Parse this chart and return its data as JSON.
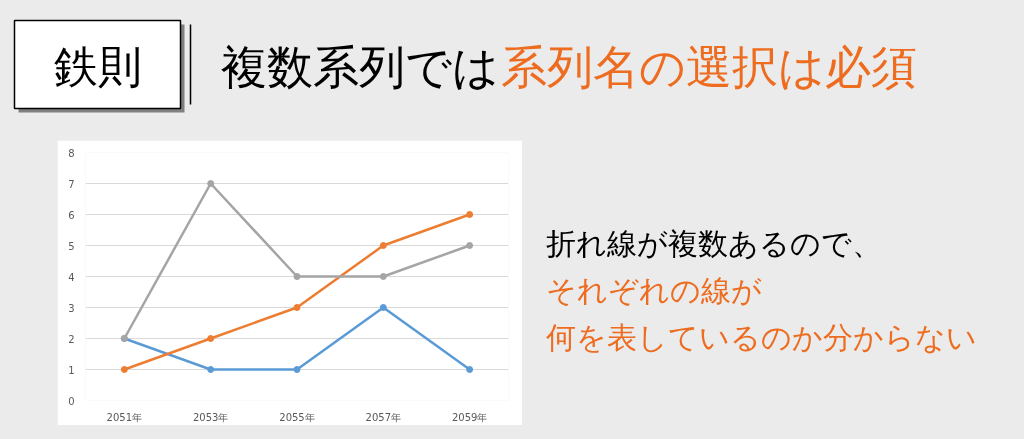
{
  "chart_data": {
    "type": "line",
    "categories": [
      "2051年",
      "2053年",
      "2055年",
      "2057年",
      "2059年"
    ],
    "series": [
      {
        "color": "#5b9bd5",
        "values": [
          2,
          1,
          1,
          3,
          1
        ]
      },
      {
        "color": "#ed7d31",
        "values": [
          1,
          2,
          3,
          5,
          6
        ]
      },
      {
        "color": "#a5a5a5",
        "values": [
          2,
          7,
          4,
          4,
          5
        ]
      }
    ],
    "ylim": [
      0,
      8
    ],
    "yticks": [
      0,
      1,
      2,
      3,
      4,
      5,
      6,
      7,
      8
    ],
    "grid": "y",
    "marker": "circle",
    "line_style": "solid",
    "annotations": [
      "鉄則",
      "複数系列では",
      "系列名の選択は必須",
      "折れ線が複数あるので、",
      "それぞれの線が",
      "何を表しているのか分からない"
    ]
  }
}
